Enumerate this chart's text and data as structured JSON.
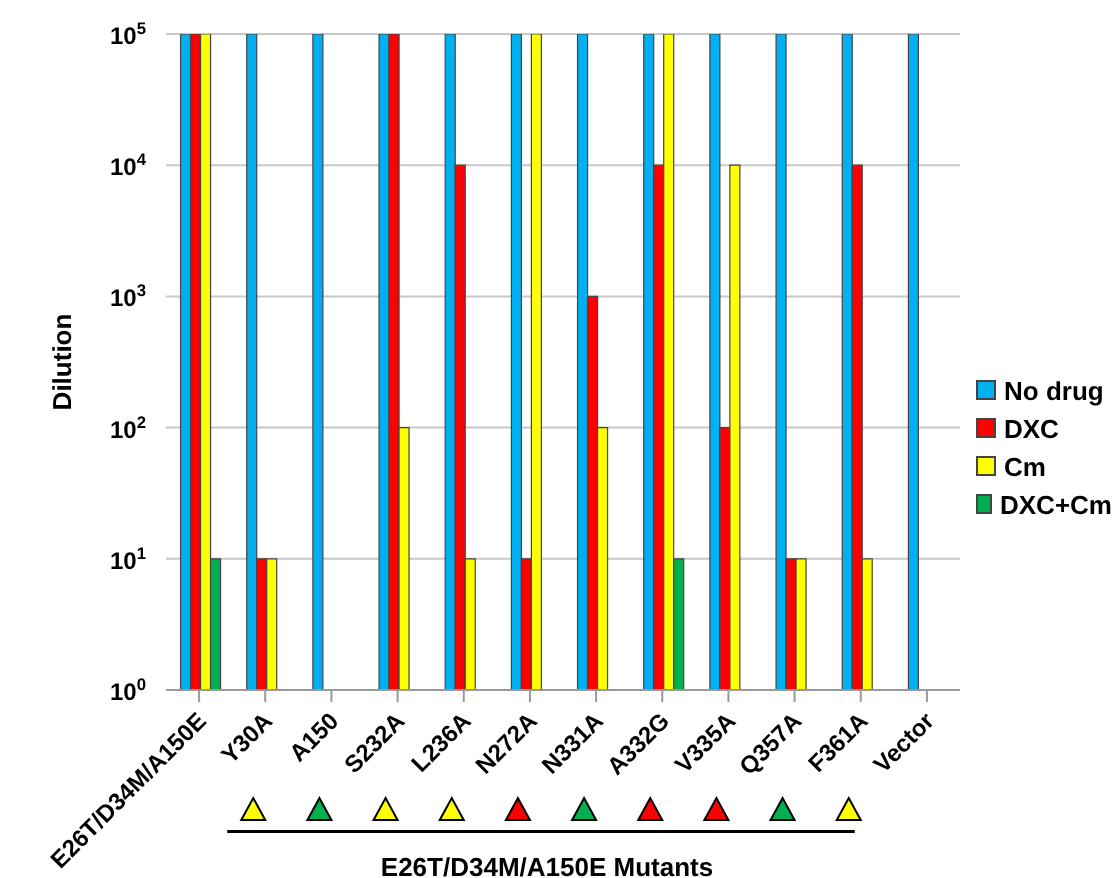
{
  "chart_data": {
    "type": "bar",
    "annotations": [
      "E26T/D34M/A150E Mutants"
    ],
    "ylabel": "Dilution",
    "categories": [
      "E26T/D34M/A150E",
      "Y30A",
      "A150",
      "S232A",
      "L236A",
      "N272A",
      "N331A",
      "A332G",
      "V335A",
      "Q357A",
      "F361A",
      "Vector"
    ],
    "series": [
      {
        "name": "No drug",
        "color": "#00b0f0",
        "values": [
          100000,
          100000,
          100000,
          100000,
          100000,
          100000,
          100000,
          100000,
          100000,
          100000,
          100000,
          100000
        ]
      },
      {
        "name": "DXC",
        "color": "#ff0000",
        "values": [
          100000,
          10,
          null,
          100000,
          10000,
          10,
          1000,
          10000,
          100,
          10,
          10000,
          null
        ]
      },
      {
        "name": "Cm",
        "color": "#ffff00",
        "values": [
          100000,
          10,
          null,
          100,
          10,
          100000,
          100,
          100000,
          10000,
          10,
          10,
          null
        ]
      },
      {
        "name": "DXC+Cm",
        "color": "#00b050",
        "values": [
          10,
          null,
          null,
          null,
          null,
          null,
          null,
          10,
          null,
          null,
          null,
          null
        ]
      }
    ],
    "log": "y",
    "ylim": [
      1,
      100000
    ],
    "yticks": [
      {
        "value": 1,
        "label": "10$^{0}$"
      },
      {
        "value": 10,
        "label": "10$^{1}$"
      },
      {
        "value": 100,
        "label": "10$^{2}$"
      },
      {
        "value": 1000,
        "label": "10$^{3}$"
      },
      {
        "value": 10000,
        "label": "10$^{4}$"
      },
      {
        "value": 100000,
        "label": "10$^{5}$"
      }
    ],
    "grid": "y",
    "legend": "right"
  }
}
